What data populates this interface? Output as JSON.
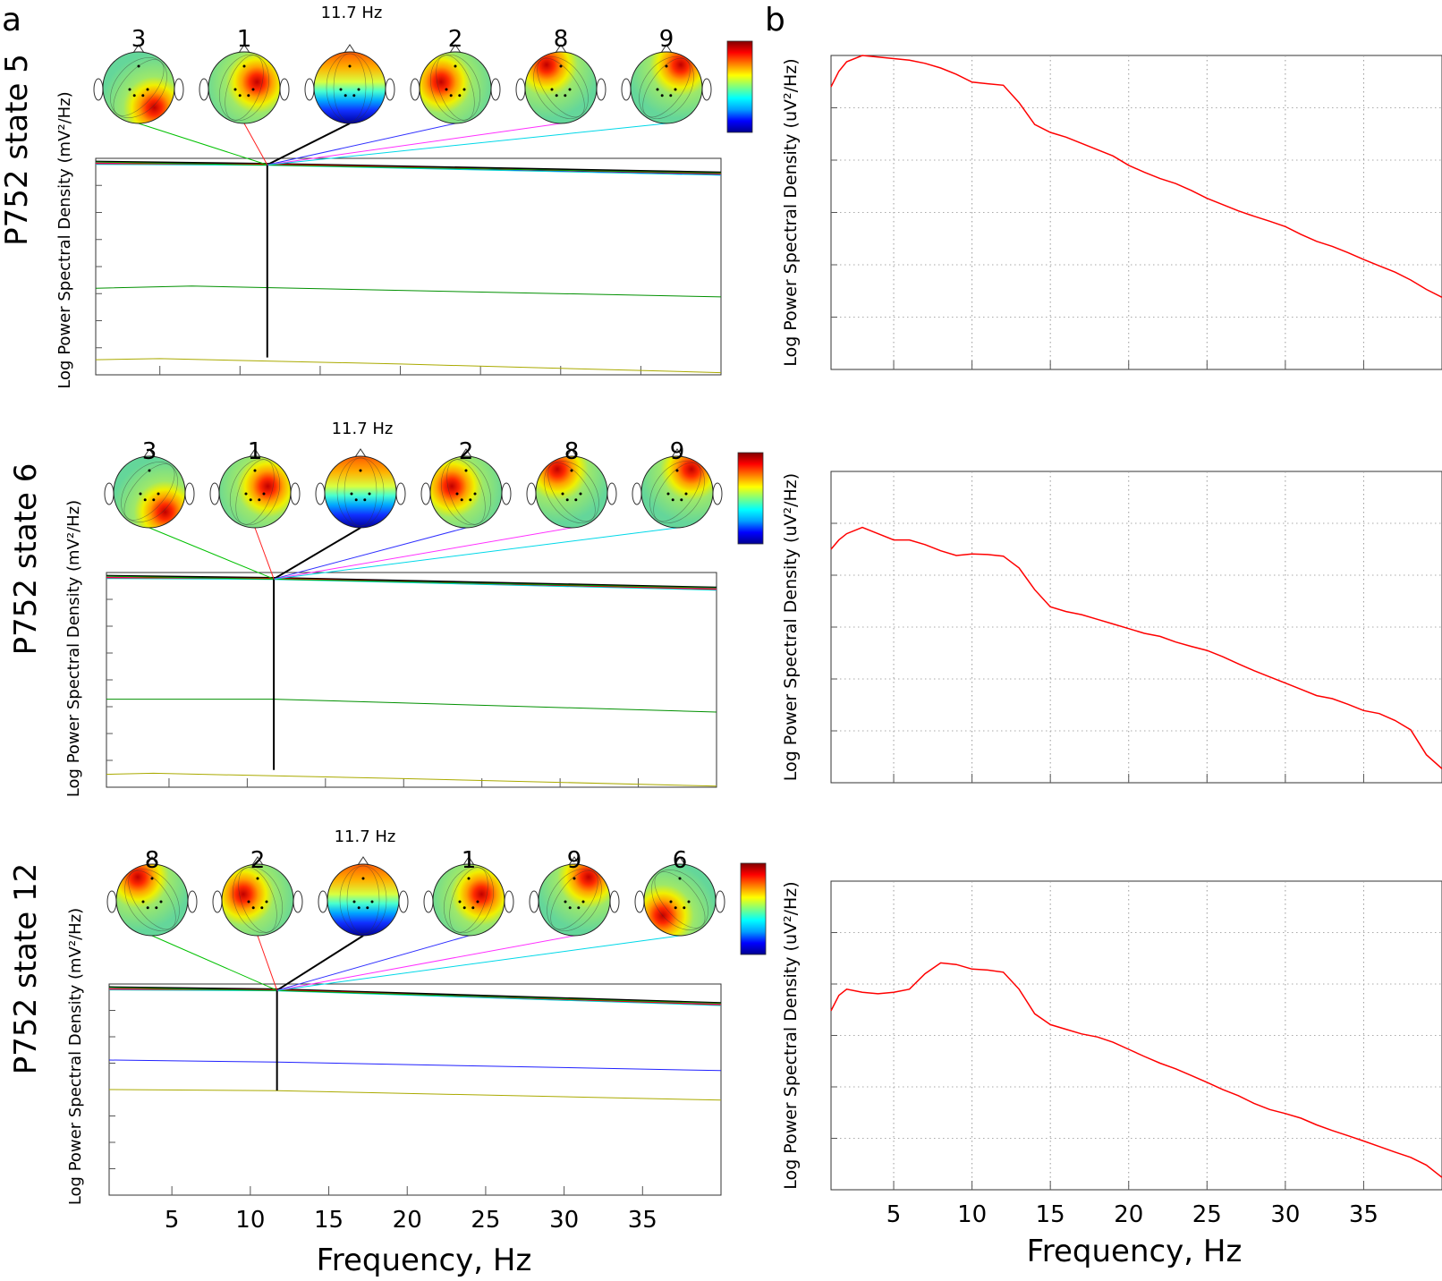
{
  "panel_labels": {
    "a": "a",
    "b": "b"
  },
  "x_axis_label": "Frequency, Hz",
  "x_tick_labels": [
    "5",
    "10",
    "15",
    "20",
    "25",
    "30",
    "35"
  ],
  "colors": {
    "psd": "#ff0000",
    "components": [
      "#000000",
      "#00aa00",
      "#ff0000",
      "#0000ff",
      "#ff00ff",
      "#00d0d0",
      "#ffcc00",
      "#aaaa00"
    ]
  },
  "colorbar_colors": [
    "#00008f",
    "#0000ff",
    "#00a0ff",
    "#00ffff",
    "#7fff7f",
    "#ffff00",
    "#ff8000",
    "#ff0000",
    "#800000"
  ],
  "chart_data": [
    {
      "type": "line",
      "title": "P752 state 5",
      "ylabel": "Log Power Spectral Density (mV²/Hz)",
      "xlabel": "",
      "marker_label": "11.7 Hz",
      "marker_freq": 11.7,
      "component_labels": [
        "3",
        "1",
        "",
        "2",
        "8",
        "9"
      ],
      "topomaps": [
        "right-posterior",
        "right-central",
        "frontal-occipital",
        "left-central",
        "left-frontal",
        "right-frontal"
      ],
      "xlim": [
        1,
        40
      ],
      "ylim": [
        0,
        1
      ],
      "series": [
        {
          "name": "black",
          "color": "#000000",
          "x": [
            1,
            11.7,
            40
          ],
          "y": [
            0.985,
            0.975,
            0.935
          ]
        },
        {
          "name": "blue",
          "color": "#0000ff",
          "x": [
            1,
            11.7,
            40
          ],
          "y": [
            0.975,
            0.972,
            0.925
          ]
        },
        {
          "name": "magenta",
          "color": "#ff00ff",
          "x": [
            1,
            11.7,
            40
          ],
          "y": [
            0.978,
            0.97,
            0.93
          ]
        },
        {
          "name": "cyan",
          "color": "#00d0d0",
          "x": [
            1,
            11.7,
            40
          ],
          "y": [
            0.972,
            0.968,
            0.922
          ]
        },
        {
          "name": "red",
          "color": "#ff0000",
          "x": [
            1,
            11.7,
            40
          ],
          "y": [
            0.976,
            0.973,
            0.928
          ]
        },
        {
          "name": "green",
          "color": "#00a000",
          "x": [
            1,
            11.7,
            40
          ],
          "y": [
            0.983,
            0.969,
            0.932
          ]
        },
        {
          "name": "dark-green",
          "color": "#009000",
          "x": [
            1,
            7,
            20,
            40
          ],
          "y": [
            0.4,
            0.41,
            0.39,
            0.36
          ]
        },
        {
          "name": "olive",
          "color": "#aaaa00",
          "x": [
            1,
            5,
            20,
            40
          ],
          "y": [
            0.07,
            0.075,
            0.05,
            0.01
          ]
        }
      ]
    },
    {
      "type": "line",
      "title": "P752 state 6",
      "ylabel": "Log Power Spectral Density (mV²/Hz)",
      "xlabel": "",
      "marker_label": "11.7 Hz",
      "marker_freq": 11.7,
      "component_labels": [
        "3",
        "1",
        "",
        "2",
        "8",
        "9"
      ],
      "topomaps": [
        "right-posterior",
        "right-central",
        "frontal-occipital",
        "left-central",
        "left-frontal",
        "right-frontal"
      ],
      "xlim": [
        1,
        40
      ],
      "ylim": [
        0,
        1
      ],
      "series": [
        {
          "name": "black",
          "color": "#000000",
          "x": [
            1,
            11.7,
            40
          ],
          "y": [
            0.985,
            0.975,
            0.93
          ]
        },
        {
          "name": "blue",
          "color": "#0000ff",
          "x": [
            1,
            11.7,
            40
          ],
          "y": [
            0.975,
            0.972,
            0.92
          ]
        },
        {
          "name": "magenta",
          "color": "#ff00ff",
          "x": [
            1,
            11.7,
            40
          ],
          "y": [
            0.978,
            0.97,
            0.925
          ]
        },
        {
          "name": "cyan",
          "color": "#00d0d0",
          "x": [
            1,
            11.7,
            40
          ],
          "y": [
            0.972,
            0.968,
            0.918
          ]
        },
        {
          "name": "red",
          "color": "#ff0000",
          "x": [
            1,
            11.7,
            40
          ],
          "y": [
            0.976,
            0.973,
            0.922
          ]
        },
        {
          "name": "green",
          "color": "#00a000",
          "x": [
            1,
            11.7,
            40
          ],
          "y": [
            0.983,
            0.969,
            0.928
          ]
        },
        {
          "name": "dark-green",
          "color": "#009000",
          "x": [
            1,
            11.7,
            40
          ],
          "y": [
            0.41,
            0.41,
            0.35
          ]
        },
        {
          "name": "olive",
          "color": "#aaaa00",
          "x": [
            1,
            4,
            20,
            40
          ],
          "y": [
            0.06,
            0.065,
            0.04,
            0.005
          ]
        }
      ]
    },
    {
      "type": "line",
      "title": "P752 state 12",
      "ylabel": "Log Power Spectral Density (mV²/Hz)",
      "xlabel": "Frequency, Hz",
      "marker_label": "11.7 Hz",
      "marker_freq": 11.7,
      "component_labels": [
        "8",
        "2",
        "",
        "1",
        "9",
        "6"
      ],
      "topomaps": [
        "left-frontal",
        "left-central",
        "frontal-occipital",
        "right-central",
        "right-frontal",
        "left-posterior"
      ],
      "xlim": [
        1,
        40
      ],
      "ylim": [
        0,
        1
      ],
      "series": [
        {
          "name": "black",
          "color": "#000000",
          "x": [
            1,
            11.7,
            40
          ],
          "y": [
            0.985,
            0.975,
            0.91
          ]
        },
        {
          "name": "blue",
          "color": "#0000ff",
          "x": [
            1,
            11.7,
            40
          ],
          "y": [
            0.975,
            0.972,
            0.9
          ]
        },
        {
          "name": "magenta",
          "color": "#ff00ff",
          "x": [
            1,
            11.7,
            40
          ],
          "y": [
            0.978,
            0.97,
            0.905
          ]
        },
        {
          "name": "cyan",
          "color": "#00d0d0",
          "x": [
            1,
            11.7,
            40
          ],
          "y": [
            0.972,
            0.968,
            0.898
          ]
        },
        {
          "name": "red",
          "color": "#ff0000",
          "x": [
            1,
            11.7,
            40
          ],
          "y": [
            0.976,
            0.973,
            0.902
          ]
        },
        {
          "name": "green",
          "color": "#00a000",
          "x": [
            1,
            11.7,
            40
          ],
          "y": [
            0.983,
            0.969,
            0.908
          ]
        },
        {
          "name": "blue-low",
          "color": "#2020ff",
          "x": [
            1,
            11.7,
            40
          ],
          "y": [
            0.64,
            0.63,
            0.59
          ]
        },
        {
          "name": "olive",
          "color": "#aaaa00",
          "x": [
            1,
            11.7,
            40
          ],
          "y": [
            0.5,
            0.495,
            0.45
          ]
        }
      ]
    },
    {
      "type": "line",
      "title": "",
      "ylabel": "Log Power Spectral Density (uV²/Hz)",
      "xlabel": "",
      "xlim": [
        1,
        40
      ],
      "ylim": [
        0,
        1
      ],
      "series": [
        {
          "name": "PSD",
          "color": "#ff0000",
          "x": [
            1,
            1.5,
            2,
            3,
            4,
            5,
            6,
            7,
            8,
            9,
            10,
            11,
            12,
            13,
            14,
            15,
            16,
            17,
            18,
            19,
            20,
            21,
            22,
            23,
            24,
            25,
            26,
            27,
            28,
            29,
            30,
            31,
            32,
            33,
            34,
            35,
            36,
            37,
            38,
            39,
            40
          ],
          "y": [
            0.9,
            0.95,
            0.98,
            1.0,
            0.995,
            0.99,
            0.985,
            0.975,
            0.96,
            0.94,
            0.915,
            0.91,
            0.905,
            0.85,
            0.78,
            0.755,
            0.74,
            0.72,
            0.7,
            0.68,
            0.65,
            0.628,
            0.608,
            0.592,
            0.57,
            0.545,
            0.525,
            0.505,
            0.488,
            0.472,
            0.455,
            0.43,
            0.408,
            0.392,
            0.372,
            0.35,
            0.33,
            0.31,
            0.285,
            0.255,
            0.23
          ]
        }
      ]
    },
    {
      "type": "line",
      "title": "",
      "ylabel": "Log Power Spectral Density (uV²/Hz)",
      "xlabel": "",
      "xlim": [
        1,
        40
      ],
      "ylim": [
        0,
        1
      ],
      "series": [
        {
          "name": "PSD",
          "color": "#ff0000",
          "x": [
            1,
            1.5,
            2,
            3,
            4,
            5,
            6,
            7,
            8,
            9,
            10,
            11,
            12,
            13,
            14,
            15,
            16,
            17,
            18,
            19,
            20,
            21,
            22,
            23,
            24,
            25,
            26,
            27,
            28,
            29,
            30,
            31,
            32,
            33,
            34,
            35,
            36,
            37,
            38,
            39,
            40
          ],
          "y": [
            0.75,
            0.78,
            0.8,
            0.82,
            0.8,
            0.78,
            0.78,
            0.765,
            0.745,
            0.73,
            0.735,
            0.733,
            0.728,
            0.69,
            0.62,
            0.565,
            0.55,
            0.54,
            0.525,
            0.51,
            0.495,
            0.48,
            0.47,
            0.452,
            0.438,
            0.425,
            0.405,
            0.382,
            0.36,
            0.34,
            0.32,
            0.3,
            0.28,
            0.27,
            0.252,
            0.232,
            0.222,
            0.2,
            0.17,
            0.09,
            0.045
          ]
        }
      ]
    },
    {
      "type": "line",
      "title": "",
      "ylabel": "Log Power Spectral Density (uV²/Hz)",
      "xlabel": "Frequency, Hz",
      "xlim": [
        1,
        40
      ],
      "ylim": [
        0,
        1
      ],
      "series": [
        {
          "name": "PSD",
          "color": "#ff0000",
          "x": [
            1,
            1.5,
            2,
            3,
            4,
            5,
            6,
            7,
            8,
            9,
            10,
            11,
            12,
            13,
            14,
            15,
            16,
            17,
            18,
            19,
            20,
            21,
            22,
            23,
            24,
            25,
            26,
            27,
            28,
            29,
            30,
            31,
            32,
            33,
            34,
            35,
            36,
            37,
            38,
            39,
            40
          ],
          "y": [
            0.58,
            0.63,
            0.65,
            0.64,
            0.635,
            0.64,
            0.65,
            0.7,
            0.735,
            0.73,
            0.715,
            0.712,
            0.705,
            0.65,
            0.57,
            0.535,
            0.52,
            0.505,
            0.495,
            0.478,
            0.455,
            0.432,
            0.41,
            0.392,
            0.37,
            0.348,
            0.325,
            0.305,
            0.28,
            0.26,
            0.247,
            0.232,
            0.21,
            0.192,
            0.175,
            0.158,
            0.14,
            0.122,
            0.105,
            0.08,
            0.04
          ]
        }
      ]
    }
  ]
}
